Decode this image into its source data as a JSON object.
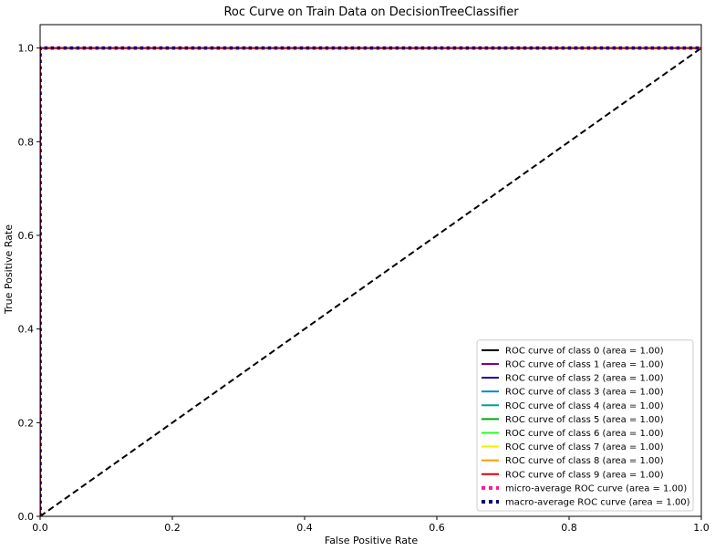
{
  "chart_data": {
    "type": "line",
    "title": "Roc Curve on Train Data on DecisionTreeClassifier",
    "xlabel": "False Positive Rate",
    "ylabel": "True Positive Rate",
    "xlim": [
      0.0,
      1.0
    ],
    "ylim": [
      0.0,
      1.05
    ],
    "xticks": [
      0.0,
      0.2,
      0.4,
      0.6,
      0.8,
      1.0
    ],
    "xtick_labels": [
      "0.0",
      "0.2",
      "0.4",
      "0.6",
      "0.8",
      "1.0"
    ],
    "yticks": [
      0.0,
      0.2,
      0.4,
      0.6,
      0.8,
      1.0
    ],
    "ytick_labels": [
      "0.0",
      "0.2",
      "0.4",
      "0.6",
      "0.8",
      "1.0"
    ],
    "grid": false,
    "legend_placement": "lower right",
    "series": [
      {
        "name": "ROC curve of class 0 (area = 1.00)",
        "color": "#000000",
        "style": "solid",
        "x": [
          0,
          0,
          1
        ],
        "y": [
          0,
          1,
          1
        ]
      },
      {
        "name": "ROC curve of class 1 (area = 1.00)",
        "color": "#7f0089",
        "style": "solid",
        "x": [
          0,
          0,
          1
        ],
        "y": [
          0,
          1,
          1
        ]
      },
      {
        "name": "ROC curve of class 2 (area = 1.00)",
        "color": "#1f00a6",
        "style": "solid",
        "x": [
          0,
          0,
          1
        ],
        "y": [
          0,
          1,
          1
        ]
      },
      {
        "name": "ROC curve of class 3 (area = 1.00)",
        "color": "#0088d2",
        "style": "solid",
        "x": [
          0,
          0,
          1
        ],
        "y": [
          0,
          1,
          1
        ]
      },
      {
        "name": "ROC curve of class 4 (area = 1.00)",
        "color": "#00a09f",
        "style": "solid",
        "x": [
          0,
          0,
          1
        ],
        "y": [
          0,
          1,
          1
        ]
      },
      {
        "name": "ROC curve of class 5 (area = 1.00)",
        "color": "#00aa00",
        "style": "solid",
        "x": [
          0,
          0,
          1
        ],
        "y": [
          0,
          1,
          1
        ]
      },
      {
        "name": "ROC curve of class 6 (area = 1.00)",
        "color": "#22ff22",
        "style": "solid",
        "x": [
          0,
          0,
          1
        ],
        "y": [
          0,
          1,
          1
        ]
      },
      {
        "name": "ROC curve of class 7 (area = 1.00)",
        "color": "#eeee00",
        "style": "solid",
        "x": [
          0,
          0,
          1
        ],
        "y": [
          0,
          1,
          1
        ]
      },
      {
        "name": "ROC curve of class 8 (area = 1.00)",
        "color": "#ff9900",
        "style": "solid",
        "x": [
          0,
          0,
          1
        ],
        "y": [
          0,
          1,
          1
        ]
      },
      {
        "name": "ROC curve of class 9 (area = 1.00)",
        "color": "#dd0000",
        "style": "solid",
        "x": [
          0,
          0,
          1
        ],
        "y": [
          0,
          1,
          1
        ]
      },
      {
        "name": "micro-average ROC curve (area = 1.00)",
        "color": "#ff1493",
        "style": "dotted",
        "x": [
          0,
          0,
          1
        ],
        "y": [
          0,
          1,
          1
        ]
      },
      {
        "name": "macro-average ROC curve (area = 1.00)",
        "color": "#000080",
        "style": "dotted",
        "x": [
          0,
          0,
          1
        ],
        "y": [
          0,
          1,
          1
        ]
      }
    ],
    "reference_line": {
      "color": "#000000",
      "style": "dashed",
      "x": [
        0,
        1
      ],
      "y": [
        0,
        1
      ]
    }
  }
}
